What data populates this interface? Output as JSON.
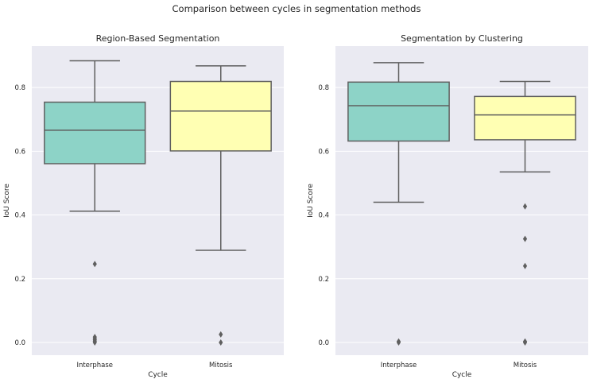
{
  "chart_data": {
    "title": "Comparison between cycles in segmentation methods",
    "type": "box",
    "panels": [
      {
        "title": "Region-Based Segmentation",
        "xlabel": "Cycle",
        "ylabel": "IoU Score",
        "ylim": [
          -0.04,
          0.93
        ],
        "yticks": [
          0.0,
          0.2,
          0.4,
          0.6,
          0.8
        ],
        "ytick_labels": [
          "0.0",
          "0.2",
          "0.4",
          "0.6",
          "0.8"
        ],
        "categories": [
          "Interphase",
          "Mitosis"
        ],
        "boxes": [
          {
            "category": "Interphase",
            "color": "#8dd3c7",
            "whisker_low": 0.412,
            "q1": 0.561,
            "median": 0.666,
            "q3": 0.754,
            "whisker_high": 0.884,
            "outliers": [
              0.246,
              0.017,
              0.012,
              0.008,
              0.004,
              0.0
            ]
          },
          {
            "category": "Mitosis",
            "color": "#ffffb3",
            "whisker_low": 0.289,
            "q1": 0.601,
            "median": 0.726,
            "q3": 0.819,
            "whisker_high": 0.868,
            "outliers": [
              0.025,
              0.0
            ]
          }
        ]
      },
      {
        "title": "Segmentation by Clustering",
        "xlabel": "Cycle",
        "ylabel": "IoU Score",
        "ylim": [
          -0.04,
          0.93
        ],
        "yticks": [
          0.0,
          0.2,
          0.4,
          0.6,
          0.8
        ],
        "ytick_labels": [
          "0.0",
          "0.2",
          "0.4",
          "0.6",
          "0.8"
        ],
        "categories": [
          "Interphase",
          "Mitosis"
        ],
        "boxes": [
          {
            "category": "Interphase",
            "color": "#8dd3c7",
            "whisker_low": 0.44,
            "q1": 0.632,
            "median": 0.743,
            "q3": 0.817,
            "whisker_high": 0.878,
            "outliers": [
              0.003,
              0.0
            ]
          },
          {
            "category": "Mitosis",
            "color": "#ffffb3",
            "whisker_low": 0.535,
            "q1": 0.636,
            "median": 0.714,
            "q3": 0.772,
            "whisker_high": 0.819,
            "outliers": [
              0.427,
              0.325,
              0.24,
              0.003,
              0.0
            ]
          }
        ]
      }
    ]
  }
}
